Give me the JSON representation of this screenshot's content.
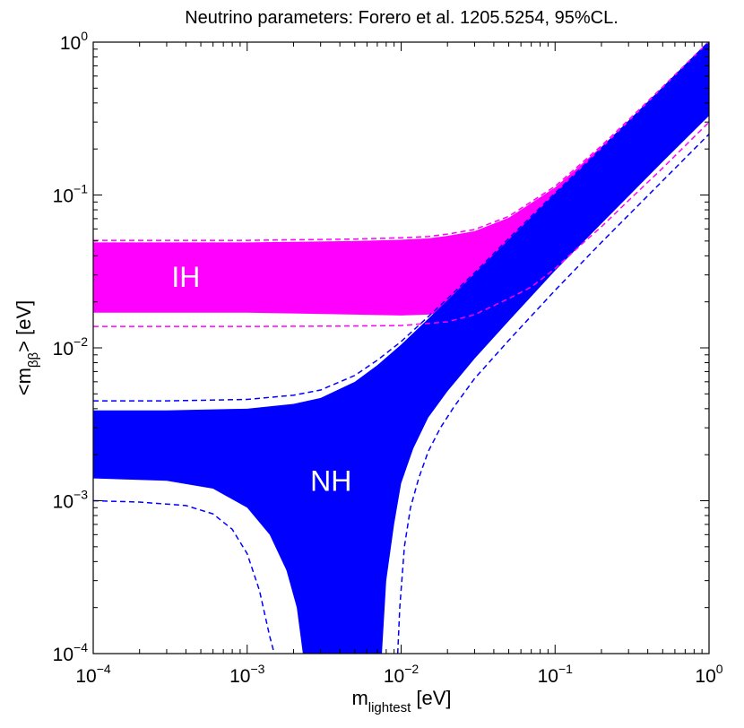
{
  "chart_data": {
    "type": "area",
    "title": "Neutrino parameters: Forero et al. 1205.5254, 95%CL.",
    "xlabel": {
      "main": "m",
      "sub": "lightest",
      "unit": " [eV]"
    },
    "ylabel": {
      "pre": "<m",
      "sub": "ββ",
      "post": "> [eV]"
    },
    "x_scale": "log",
    "y_scale": "log",
    "xlim": [
      0.0001,
      1
    ],
    "ylim": [
      0.0001,
      1
    ],
    "grid": false,
    "x_ticks": [
      {
        "value": 0.0001,
        "base": "10",
        "exp": "−4"
      },
      {
        "value": 0.001,
        "base": "10",
        "exp": "−3"
      },
      {
        "value": 0.01,
        "base": "10",
        "exp": "−2"
      },
      {
        "value": 0.1,
        "base": "10",
        "exp": "−1"
      },
      {
        "value": 1,
        "base": "10",
        "exp": "0"
      }
    ],
    "y_ticks": [
      {
        "value": 0.0001,
        "base": "10",
        "exp": "−4"
      },
      {
        "value": 0.001,
        "base": "10",
        "exp": "−3"
      },
      {
        "value": 0.01,
        "base": "10",
        "exp": "−2"
      },
      {
        "value": 0.1,
        "base": "10",
        "exp": "−1"
      },
      {
        "value": 1,
        "base": "10",
        "exp": "0"
      }
    ],
    "colors": {
      "IH": "#ff00ff",
      "NH": "#0000ff"
    },
    "regions": [
      {
        "name": "IH",
        "label_pos": [
          0.0004,
          0.028
        ],
        "upper": {
          "x": [
            0.0001,
            0.001,
            0.005,
            0.01,
            0.015,
            0.02,
            0.03,
            0.05,
            0.1,
            0.2,
            0.3,
            0.5,
            1
          ],
          "y": [
            0.049,
            0.049,
            0.05,
            0.051,
            0.052,
            0.054,
            0.058,
            0.071,
            0.112,
            0.207,
            0.305,
            0.503,
            1.0
          ]
        },
        "lower": {
          "x": [
            0.0001,
            0.001,
            0.005,
            0.01,
            0.015,
            0.02,
            0.03,
            0.05,
            0.1,
            0.2,
            0.3,
            0.5,
            1
          ],
          "y": [
            0.017,
            0.017,
            0.0165,
            0.0163,
            0.0165,
            0.0172,
            0.02,
            0.026,
            0.045,
            0.09,
            0.13,
            0.2,
            0.34
          ]
        }
      },
      {
        "name": "NH",
        "label_pos": [
          0.0035,
          0.0013
        ],
        "upper": {
          "x": [
            0.0001,
            0.0003,
            0.001,
            0.002,
            0.003,
            0.005,
            0.007,
            0.01,
            0.015,
            0.02,
            0.03,
            0.05,
            0.1,
            0.2,
            0.5,
            1
          ],
          "y": [
            0.0039,
            0.0039,
            0.004,
            0.0043,
            0.0047,
            0.006,
            0.0077,
            0.0105,
            0.0155,
            0.0205,
            0.0305,
            0.051,
            0.102,
            0.2,
            0.5,
            1.0
          ]
        },
        "lower": {
          "x": [
            0.0001,
            0.0003,
            0.0006,
            0.001,
            0.0014,
            0.0018,
            0.0021,
            0.0023,
            0.0075,
            0.008,
            0.009,
            0.01,
            0.012,
            0.015,
            0.02,
            0.03,
            0.05,
            0.1,
            0.2,
            0.5,
            1
          ],
          "y": [
            0.0014,
            0.00135,
            0.0012,
            0.0009,
            0.0006,
            0.00035,
            0.0002,
            0.0001,
            0.0001,
            0.0003,
            0.0007,
            0.0013,
            0.0022,
            0.0035,
            0.0052,
            0.0085,
            0.015,
            0.032,
            0.065,
            0.165,
            0.33
          ]
        }
      }
    ],
    "dashed_curves": [
      {
        "region": "IH",
        "bound": "upper",
        "x": [
          0.0001,
          0.001,
          0.005,
          0.01,
          0.015,
          0.02,
          0.03,
          0.05,
          0.1,
          0.2,
          0.3,
          0.5,
          1
        ],
        "y": [
          0.0505,
          0.0505,
          0.0515,
          0.0525,
          0.0535,
          0.0555,
          0.0595,
          0.0725,
          0.114,
          0.21,
          0.31,
          0.51,
          1.01
        ]
      },
      {
        "region": "IH",
        "bound": "lower",
        "x": [
          0.0001,
          0.001,
          0.005,
          0.01,
          0.02,
          0.03,
          0.05,
          0.07,
          0.1,
          0.15,
          0.2,
          0.3,
          0.5,
          1
        ],
        "y": [
          0.0138,
          0.0138,
          0.0139,
          0.014,
          0.0148,
          0.0165,
          0.021,
          0.025,
          0.033,
          0.048,
          0.062,
          0.092,
          0.15,
          0.3
        ]
      },
      {
        "region": "NH",
        "bound": "upper",
        "x": [
          0.0001,
          0.0003,
          0.001,
          0.002,
          0.003,
          0.005,
          0.007,
          0.01,
          0.015,
          0.02,
          0.03,
          0.05,
          0.1,
          0.2,
          0.5,
          1
        ],
        "y": [
          0.0045,
          0.0045,
          0.0046,
          0.0049,
          0.0053,
          0.0066,
          0.0083,
          0.011,
          0.016,
          0.021,
          0.031,
          0.052,
          0.103,
          0.202,
          0.502,
          1.01
        ]
      },
      {
        "region": "NH",
        "bound": "lower",
        "x": [
          0.0001,
          0.0002,
          0.0004,
          0.0006,
          0.0008,
          0.001,
          0.0012,
          0.0014,
          0.0015
        ],
        "y": [
          0.001,
          0.00098,
          0.00093,
          0.00082,
          0.00065,
          0.00045,
          0.00026,
          0.00013,
          0.0001
        ]
      },
      {
        "region": "NH",
        "bound": "lower",
        "x": [
          0.0095,
          0.0098,
          0.0105,
          0.0115,
          0.013,
          0.015,
          0.018,
          0.022,
          0.03,
          0.05,
          0.1,
          0.2,
          0.5,
          1
        ],
        "y": [
          0.0001,
          0.0002,
          0.0005,
          0.0009,
          0.0014,
          0.0021,
          0.003,
          0.0041,
          0.0063,
          0.0112,
          0.0238,
          0.049,
          0.124,
          0.25
        ]
      }
    ]
  }
}
